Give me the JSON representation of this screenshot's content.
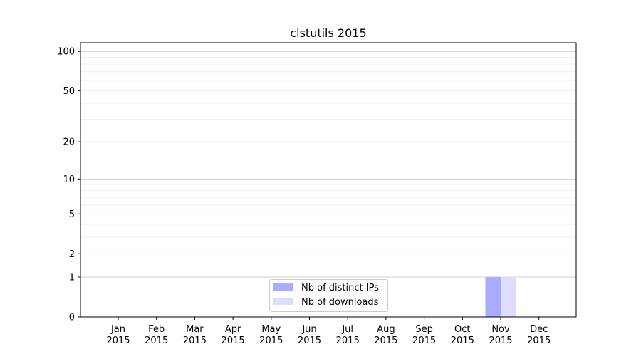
{
  "chart_data": {
    "type": "bar",
    "title": "clstutils 2015",
    "xlabel": "",
    "ylabel": "",
    "yscale": "log10(1+y)",
    "ylim": [
      0,
      116.5
    ],
    "yticks": [
      0,
      1,
      2,
      5,
      10,
      20,
      50,
      100
    ],
    "grid": true,
    "legend_placement": "bottom-center",
    "categories": [
      "Jan\n2015",
      "Feb\n2015",
      "Mar\n2015",
      "Apr\n2015",
      "May\n2015",
      "Jun\n2015",
      "Jul\n2015",
      "Aug\n2015",
      "Sep\n2015",
      "Oct\n2015",
      "Nov\n2015",
      "Dec\n2015"
    ],
    "series": [
      {
        "name": "Nb of distinct IPs",
        "color": "#aaaaff",
        "values": [
          0,
          0,
          0,
          0,
          0,
          0,
          0,
          0,
          0,
          0,
          1,
          0
        ]
      },
      {
        "name": "Nb of downloads",
        "color": "#ddddff",
        "values": [
          0,
          0,
          0,
          0,
          0,
          0,
          0,
          0,
          0,
          0,
          1,
          0
        ]
      }
    ]
  }
}
